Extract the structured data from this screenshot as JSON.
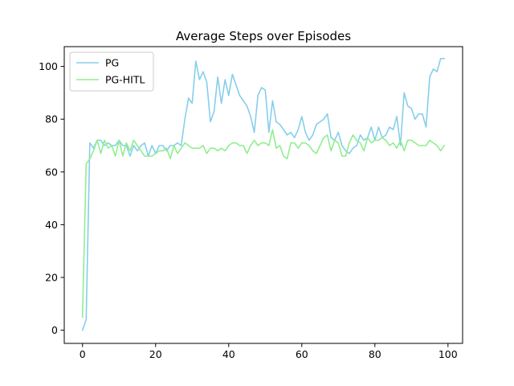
{
  "chart_data": {
    "type": "line",
    "title": "Average Steps over Episodes",
    "xlabel": "",
    "ylabel": "",
    "xlim": [
      -5,
      104
    ],
    "ylim": [
      -5,
      107.5
    ],
    "xticks": [
      0,
      20,
      40,
      60,
      80,
      100
    ],
    "yticks": [
      0,
      20,
      40,
      60,
      80,
      100
    ],
    "grid": false,
    "legend_position": "upper-left",
    "x": [
      0,
      1,
      2,
      3,
      4,
      5,
      6,
      7,
      8,
      9,
      10,
      11,
      12,
      13,
      14,
      15,
      16,
      17,
      18,
      19,
      20,
      21,
      22,
      23,
      24,
      25,
      26,
      27,
      28,
      29,
      30,
      31,
      32,
      33,
      34,
      35,
      36,
      37,
      38,
      39,
      40,
      41,
      42,
      43,
      44,
      45,
      46,
      47,
      48,
      49,
      50,
      51,
      52,
      53,
      54,
      55,
      56,
      57,
      58,
      59,
      60,
      61,
      62,
      63,
      64,
      65,
      66,
      67,
      68,
      69,
      70,
      71,
      72,
      73,
      74,
      75,
      76,
      77,
      78,
      79,
      80,
      81,
      82,
      83,
      84,
      85,
      86,
      87,
      88,
      89,
      90,
      91,
      92,
      93,
      94,
      95,
      96,
      97,
      98,
      99
    ],
    "series": [
      {
        "name": "PG",
        "color": "#87CEEB",
        "values": [
          0,
          4,
          71,
          69,
          72,
          72,
          70,
          71,
          70,
          70,
          72,
          70,
          70,
          66,
          70,
          68,
          70,
          71,
          66,
          70,
          67,
          70,
          70,
          68,
          70,
          70,
          71,
          70,
          80,
          88,
          86,
          102,
          95,
          98,
          94,
          79,
          83,
          96,
          86,
          95,
          89,
          97,
          93,
          89,
          87,
          85,
          81,
          75,
          89,
          92,
          91,
          75,
          87,
          79,
          78,
          76,
          74,
          75,
          73,
          76,
          81,
          75,
          72,
          74,
          78,
          79,
          80,
          82,
          73,
          72,
          75,
          70,
          68,
          67,
          69,
          70,
          74,
          72,
          73,
          77,
          72,
          77,
          73,
          74,
          77,
          76,
          81,
          70,
          90,
          85,
          84,
          80,
          82,
          82,
          77,
          96,
          99,
          98,
          103,
          103
        ]
      },
      {
        "name": "PG-HITL",
        "color": "#90EE90",
        "values": [
          5,
          63,
          65,
          68,
          72,
          67,
          72,
          69,
          70,
          66,
          72,
          66,
          71,
          68,
          72,
          70,
          68,
          66,
          66,
          66,
          67,
          68,
          68,
          69,
          65,
          70,
          67,
          69,
          71,
          70,
          69,
          69,
          69,
          70,
          67,
          69,
          69,
          68,
          69,
          68,
          70,
          71,
          71,
          70,
          70,
          67,
          70,
          72,
          70,
          71,
          71,
          70,
          76,
          69,
          70,
          66,
          65,
          71,
          71,
          69,
          71,
          71,
          70,
          68,
          67,
          70,
          73,
          74,
          68,
          72,
          71,
          66,
          66,
          71,
          74,
          72,
          71,
          68,
          73,
          71,
          72,
          72,
          73,
          72,
          70,
          71,
          69,
          72,
          68,
          72,
          72,
          71,
          70,
          70,
          70,
          72,
          71,
          70,
          68,
          70
        ]
      }
    ]
  }
}
